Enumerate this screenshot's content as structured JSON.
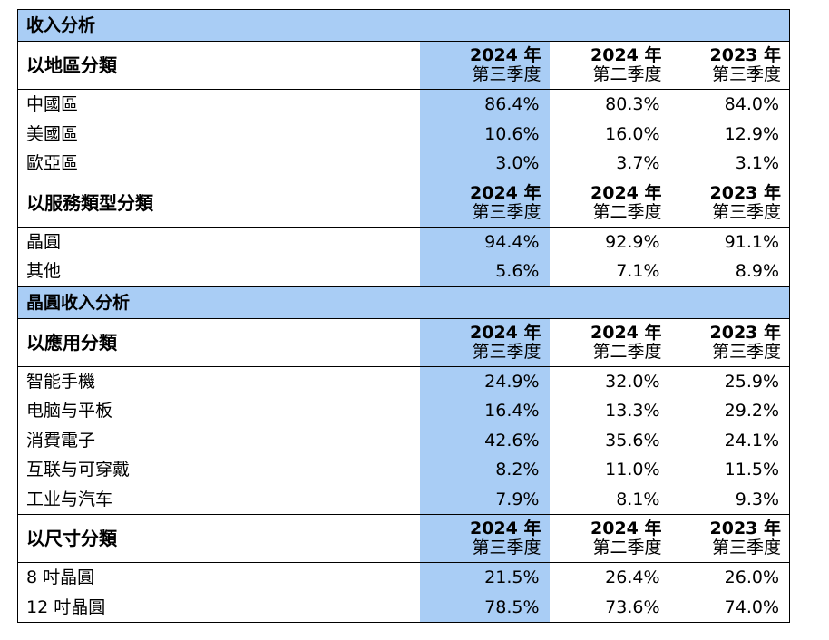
{
  "table": {
    "sections": [
      {
        "title": "收入分析",
        "groups": [
          {
            "label": "以地區分類",
            "columns": [
              {
                "year": "2024 年",
                "quarter": "第三季度"
              },
              {
                "year": "2024 年",
                "quarter": "第二季度"
              },
              {
                "year": "2023 年",
                "quarter": "第三季度"
              }
            ],
            "rows": [
              {
                "label": "中國區",
                "values": [
                  "86.4%",
                  "80.3%",
                  "84.0%"
                ]
              },
              {
                "label": "美國區",
                "values": [
                  "10.6%",
                  "16.0%",
                  "12.9%"
                ]
              },
              {
                "label": "歐亞區",
                "values": [
                  "3.0%",
                  "3.7%",
                  "3.1%"
                ]
              }
            ]
          },
          {
            "label": "以服務類型分類",
            "columns": [
              {
                "year": "2024 年",
                "quarter": "第三季度"
              },
              {
                "year": "2024 年",
                "quarter": "第二季度"
              },
              {
                "year": "2023 年",
                "quarter": "第三季度"
              }
            ],
            "rows": [
              {
                "label": "晶圓",
                "values": [
                  "94.4%",
                  "92.9%",
                  "91.1%"
                ]
              },
              {
                "label": "其他",
                "values": [
                  "5.6%",
                  "7.1%",
                  "8.9%"
                ]
              }
            ]
          }
        ]
      },
      {
        "title": "晶圓收入分析",
        "groups": [
          {
            "label": "以應用分類",
            "columns": [
              {
                "year": "2024 年",
                "quarter": "第三季度"
              },
              {
                "year": "2024 年",
                "quarter": "第二季度"
              },
              {
                "year": "2023 年",
                "quarter": "第三季度"
              }
            ],
            "rows": [
              {
                "label": "智能手機",
                "values": [
                  "24.9%",
                  "32.0%",
                  "25.9%"
                ]
              },
              {
                "label": "电脑与平板",
                "values": [
                  "16.4%",
                  "13.3%",
                  "29.2%"
                ]
              },
              {
                "label": "消費電子",
                "values": [
                  "42.6%",
                  "35.6%",
                  "24.1%"
                ]
              },
              {
                "label": "互联与可穿戴",
                "values": [
                  "8.2%",
                  "11.0%",
                  "11.5%"
                ]
              },
              {
                "label": "工业与汽车",
                "values": [
                  "7.9%",
                  "8.1%",
                  "9.3%"
                ]
              }
            ]
          },
          {
            "label": "以尺寸分類",
            "columns": [
              {
                "year": "2024 年",
                "quarter": "第三季度"
              },
              {
                "year": "2024 年",
                "quarter": "第二季度"
              },
              {
                "year": "2023 年",
                "quarter": "第三季度"
              }
            ],
            "rows": [
              {
                "label": "8 吋晶圓",
                "values": [
                  "21.5%",
                  "26.4%",
                  "26.0%"
                ]
              },
              {
                "label": "12 吋晶圓",
                "values": [
                  "78.5%",
                  "73.6%",
                  "74.0%"
                ]
              }
            ]
          }
        ]
      }
    ]
  },
  "colors": {
    "highlight": "#a9cdf5",
    "border": "#000000"
  }
}
